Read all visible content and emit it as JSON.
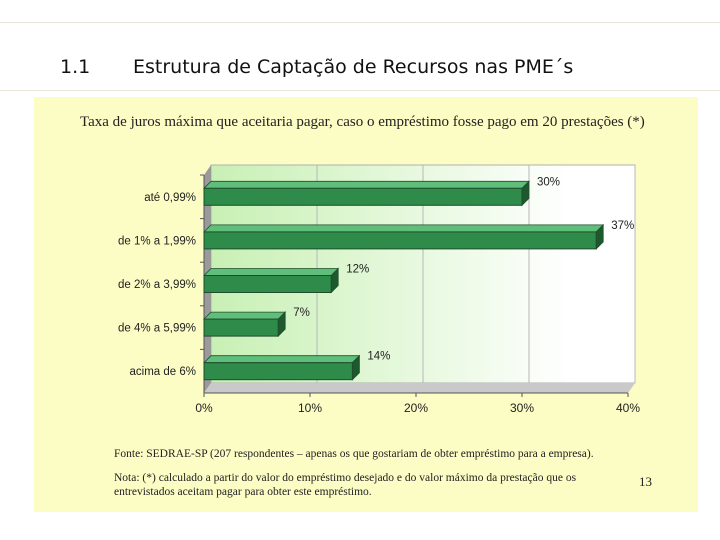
{
  "slide": {
    "section_number": "1.1",
    "title": "Estrutura de Captação de Recursos nas PME´s",
    "page_number": "13"
  },
  "colors": {
    "panel_background": "#fcfcc5",
    "bar_fill": "#2e8b4a",
    "plot_gradient_left": "#c8f0b4",
    "plot_gradient_right": "#ffffff"
  },
  "chart_data": {
    "type": "bar",
    "orientation": "horizontal",
    "title": "Taxa de juros máxima que aceitaria pagar, caso o empréstimo fosse pago em 20 prestações (*)",
    "categories": [
      "até 0,99%",
      "de 1% a 1,99%",
      "de 2% a 3,99%",
      "de 4% a 5,99%",
      "acima de 6%"
    ],
    "values": [
      30,
      37,
      12,
      7,
      14
    ],
    "data_labels": [
      "30%",
      "37%",
      "12%",
      "7%",
      "14%"
    ],
    "x_ticks": [
      "0%",
      "10%",
      "20%",
      "30%",
      "40%"
    ],
    "xlim": [
      0,
      40
    ],
    "grid": "vertical",
    "legend": "none"
  },
  "notes": {
    "source": "Fonte: SEDRAE-SP (207 respondentes – apenas os que gostariam de obter empréstimo para a empresa).",
    "footnote_line1": "Nota: (*) calculado a partir do valor do empréstimo desejado e do valor máximo da prestação que os",
    "footnote_line2": "entrevistados aceitam pagar para obter este empréstimo."
  }
}
